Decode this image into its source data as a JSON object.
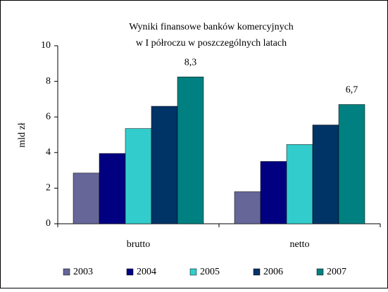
{
  "chart_data": {
    "type": "bar",
    "title": [
      "Wyniki finansowe banków komercyjnych",
      "w I półroczu w poszczególnych latach"
    ],
    "y_label": "mld zł",
    "categories": [
      "brutto",
      "netto"
    ],
    "series": [
      {
        "name": "2003",
        "color": "#666699",
        "values": [
          2.85,
          1.8
        ]
      },
      {
        "name": "2004",
        "color": "#000080",
        "values": [
          3.95,
          3.5
        ]
      },
      {
        "name": "2005",
        "color": "#33cccc",
        "values": [
          5.35,
          4.45
        ]
      },
      {
        "name": "2006",
        "color": "#003366",
        "values": [
          6.6,
          5.55
        ]
      },
      {
        "name": "2007",
        "color": "#008080",
        "values": [
          8.25,
          6.7
        ],
        "value_labels": [
          "8,3",
          "6,7"
        ]
      }
    ],
    "ylim": [
      0,
      10
    ],
    "yticks": [
      0,
      2,
      4,
      6,
      8,
      10
    ],
    "grid": false,
    "legend": "bottom"
  }
}
